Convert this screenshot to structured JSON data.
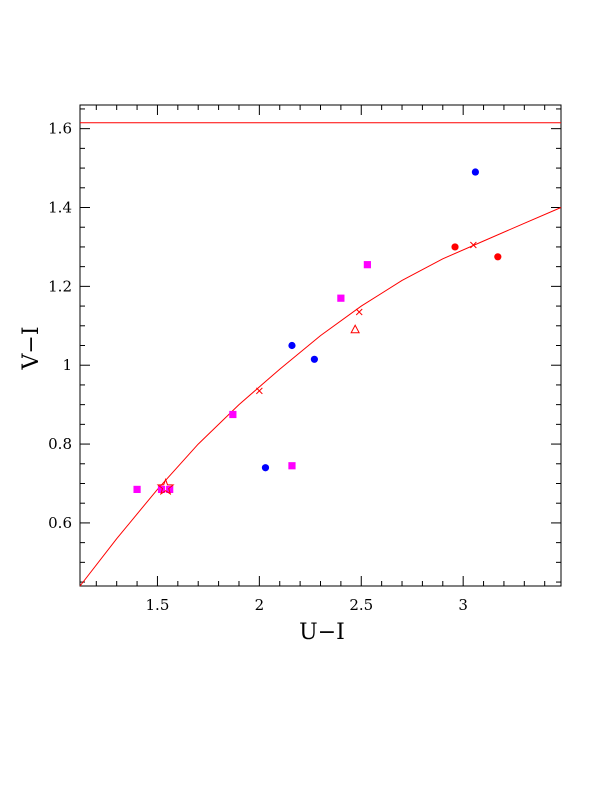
{
  "chart_data": {
    "type": "scatter",
    "xlabel": "U−I",
    "ylabel": "V−I",
    "xlim": [
      1.12,
      3.48
    ],
    "ylim": [
      0.44,
      1.66
    ],
    "grid": false,
    "xticks": [
      {
        "value": 1.5,
        "label": "1.5"
      },
      {
        "value": 2,
        "label": "2"
      },
      {
        "value": 2.5,
        "label": "2.5"
      },
      {
        "value": 3,
        "label": "3"
      }
    ],
    "yticks": [
      {
        "value": 0.6,
        "label": "0.6"
      },
      {
        "value": 0.8,
        "label": "0.8"
      },
      {
        "value": 1.0,
        "label": "1"
      },
      {
        "value": 1.2,
        "label": "1.2"
      },
      {
        "value": 1.4,
        "label": "1.4"
      },
      {
        "value": 1.6,
        "label": "1.6"
      }
    ],
    "reference_line": {
      "y": 1.615,
      "color": "#ff0000"
    },
    "curve": {
      "color": "#ff0000",
      "x": [
        1.12,
        1.3,
        1.5,
        1.7,
        1.9,
        2.1,
        2.3,
        2.5,
        2.7,
        2.9,
        3.1,
        3.3,
        3.48
      ],
      "y": [
        0.44,
        0.56,
        0.685,
        0.8,
        0.9,
        0.99,
        1.075,
        1.15,
        1.215,
        1.27,
        1.315,
        1.36,
        1.4
      ]
    },
    "series": [
      {
        "marker": "circle",
        "color": "#0000ff",
        "points": [
          [
            2.16,
            1.05
          ],
          [
            2.27,
            1.015
          ],
          [
            2.03,
            0.74
          ],
          [
            3.06,
            1.49
          ]
        ]
      },
      {
        "marker": "square",
        "color": "#ff00ff",
        "points": [
          [
            1.4,
            0.685
          ],
          [
            1.52,
            0.685
          ],
          [
            1.56,
            0.685
          ],
          [
            1.87,
            0.875
          ],
          [
            2.16,
            0.745
          ],
          [
            2.4,
            1.17
          ],
          [
            2.53,
            1.255
          ]
        ]
      },
      {
        "marker": "circle",
        "color": "#ff0000",
        "points": [
          [
            2.96,
            1.3
          ],
          [
            3.17,
            1.275
          ]
        ]
      },
      {
        "marker": "triangle",
        "color": "#ff0000",
        "points": [
          [
            2.47,
            1.09
          ]
        ]
      },
      {
        "marker": "cross",
        "color": "#ff0000",
        "points": [
          [
            2.0,
            0.935
          ],
          [
            2.49,
            1.135
          ],
          [
            3.05,
            1.305
          ]
        ]
      },
      {
        "marker": "star",
        "color": "#ff0000",
        "points": [
          [
            1.54,
            0.69
          ]
        ]
      }
    ]
  }
}
